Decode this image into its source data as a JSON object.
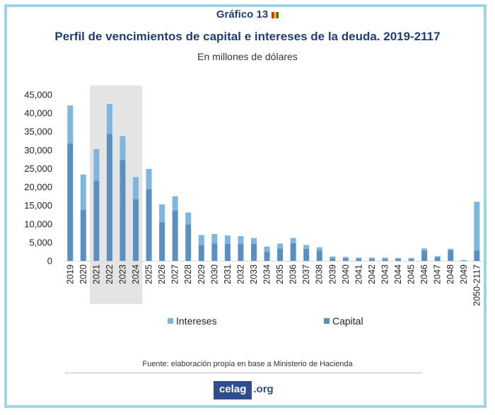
{
  "header": {
    "tag": "Gráfico 13",
    "title": "Perfil de vencimientos de capital e intereses de la deuda. 2019-2117",
    "subtitle": "En millones de dólares"
  },
  "footer": {
    "source": "Fuente: elaboración propia en base a Ministerio de Hacienda",
    "logo_box": "celag",
    "logo_suffix": ".org"
  },
  "colors": {
    "capital": "#5a8fc2",
    "intereses": "#7fb6df",
    "highlight": "#e4e4e4",
    "frame": "#9fd4e6",
    "title": "#1f3f73"
  },
  "chart_data": {
    "type": "bar",
    "stacked": true,
    "highlight_range": [
      "2021",
      "2024"
    ],
    "categories": [
      "2019",
      "2020",
      "2021",
      "2022",
      "2023",
      "2024",
      "2025",
      "2026",
      "2027",
      "2028",
      "2029",
      "2030",
      "2031",
      "2032",
      "2033",
      "2034",
      "2035",
      "2036",
      "2037",
      "2038",
      "2039",
      "2040",
      "2041",
      "2042",
      "2043",
      "2044",
      "2045",
      "2046",
      "2047",
      "2048",
      "2049",
      "2050-2117"
    ],
    "series": [
      {
        "name": "Capital",
        "values": [
          31800,
          13800,
          21700,
          34400,
          27300,
          16700,
          19500,
          10500,
          13600,
          9900,
          4300,
          4700,
          4600,
          4500,
          4600,
          2500,
          3400,
          4800,
          3300,
          2800,
          700,
          700,
          500,
          500,
          500,
          500,
          500,
          2800,
          1000,
          2900,
          200,
          2800
        ]
      },
      {
        "name": "Intereses",
        "values": [
          10300,
          9600,
          8600,
          8100,
          6500,
          6000,
          5400,
          4800,
          3900,
          3200,
          2700,
          2600,
          2300,
          2200,
          1600,
          1400,
          1300,
          1400,
          1000,
          900,
          500,
          400,
          400,
          400,
          400,
          300,
          300,
          600,
          300,
          400,
          0,
          13200
        ]
      }
    ],
    "legend": {
      "position": "bottom",
      "order": [
        "Intereses",
        "Capital"
      ]
    },
    "yticks": [
      "0",
      "5,000",
      "10,000",
      "15,000",
      "20,000",
      "25,000",
      "30,000",
      "35,000",
      "40,000",
      "45,000"
    ],
    "ylim": [
      0,
      45000
    ],
    "grid": false
  }
}
